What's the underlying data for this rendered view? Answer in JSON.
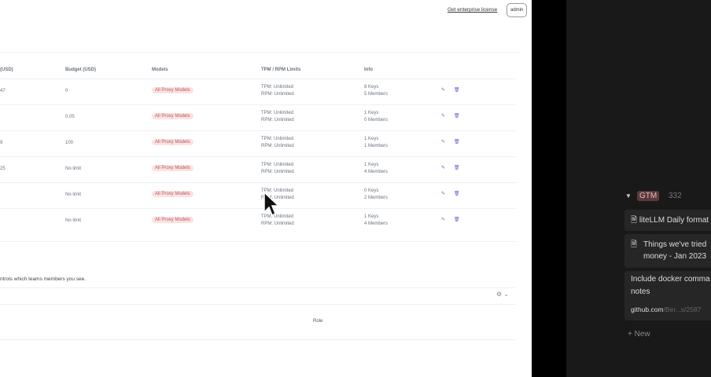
{
  "header": {
    "license_link": "Get enterprise license",
    "user_button": "admin"
  },
  "table": {
    "columns": [
      "(USD)",
      "Budget (USD)",
      "Models",
      "TPM / RPM Limits",
      "Info"
    ],
    "rows": [
      {
        "spend": "47",
        "budget": "0",
        "models": "All Proxy Models",
        "tpm": "TPM: Unlimited",
        "rpm": "RPM: Unlimited",
        "keys": "8 Keys",
        "members": "5 Members"
      },
      {
        "spend": "",
        "budget": "0.05",
        "models": "All Proxy Models",
        "tpm": "TPM: Unlimited",
        "rpm": "RPM: Unlimited",
        "keys": "1 Keys",
        "members": "0 Members"
      },
      {
        "spend": "9",
        "budget": "100",
        "models": "All Proxy Models",
        "tpm": "TPM: Unlimited",
        "rpm": "RPM: Unlimited",
        "keys": "1 Keys",
        "members": "1 Members"
      },
      {
        "spend": "25",
        "budget": "No limit",
        "models": "All Proxy Models",
        "tpm": "TPM: Unlimited",
        "rpm": "RPM: Unlimited",
        "keys": "1 Keys",
        "members": "4 Members"
      },
      {
        "spend": "",
        "budget": "No limit",
        "models": "All Proxy Models",
        "tpm": "TPM: Unlimited",
        "rpm": "RPM: Unlimited",
        "keys": "0 Keys",
        "members": "2 Members"
      },
      {
        "spend": "",
        "budget": "No limit",
        "models": "All Proxy Models",
        "tpm": "TPM: Unlimited",
        "rpm": "RPM: Unlimited",
        "keys": "1 Keys",
        "members": "4 Members"
      }
    ]
  },
  "members": {
    "description": "ntrols which teams members you see.",
    "role_header": "Role"
  },
  "notion": {
    "group": "GTM",
    "count": "332",
    "cards": [
      "liteLLM Daily format",
      "Things we've tried money - Jan 2023"
    ],
    "card3_title": "Include docker comma notes",
    "card3_link": "github.com",
    "card3_link_rest": "/Ber...s/2587",
    "new_label": "New"
  },
  "colors": {
    "accent": "#6d5fd6",
    "badge_bg": "#fde2e2",
    "dark_bg": "#191919"
  }
}
